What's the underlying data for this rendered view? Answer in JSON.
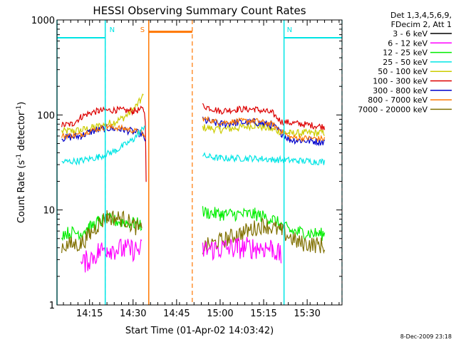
{
  "chart_data": {
    "type": "line",
    "title": "HESSI Observing Summary Count Rates",
    "xlabel": "Start Time (01-Apr-02 14:03:42)",
    "ylabel": "Count Rate (s",
    "ylabel_sup1": "-1",
    "ylabel_mid": " detector",
    "ylabel_sup2": "-1",
    "ylabel_end": ")",
    "yscale": "log",
    "ylim": [
      1,
      1000
    ],
    "xlim": [
      14.063,
      15.7
    ],
    "x_unit": "decimal hours UT",
    "x_ticks": [
      {
        "value": 14.25,
        "label": "14:15"
      },
      {
        "value": 14.5,
        "label": "14:30"
      },
      {
        "value": 14.75,
        "label": "14:45"
      },
      {
        "value": 15.0,
        "label": "15:00"
      },
      {
        "value": 15.25,
        "label": "15:15"
      },
      {
        "value": 15.5,
        "label": "15:30"
      }
    ],
    "y_ticks": [
      {
        "value": 1,
        "label": "1"
      },
      {
        "value": 10,
        "label": "10"
      },
      {
        "value": 100,
        "label": "100"
      },
      {
        "value": 1000,
        "label": "1000"
      }
    ],
    "header": {
      "line1": "Det 1,3,4,5,6,9,",
      "line2": "FDecim 2, Att 1"
    },
    "legend": [
      {
        "label": "3 - 6 keV",
        "color": "#000000"
      },
      {
        "label": "6 - 12 keV",
        "color": "#ff00ff"
      },
      {
        "label": "12 - 25 keV",
        "color": "#00ee00"
      },
      {
        "label": "25 - 50 keV",
        "color": "#00e5e5"
      },
      {
        "label": "50 - 100 keV",
        "color": "#cccc00"
      },
      {
        "label": "100 - 300 keV",
        "color": "#dd0000"
      },
      {
        "label": "300 - 800 keV",
        "color": "#0000cc"
      },
      {
        "label": "800 - 7000 keV",
        "color": "#ff7700"
      },
      {
        "label": "7000 - 20000 keV",
        "color": "#807000"
      }
    ],
    "series": [
      {
        "color": "#cccc00",
        "values": [
          [
            14.09,
            67
          ],
          [
            14.2,
            69
          ],
          [
            14.3,
            76
          ],
          [
            14.4,
            85
          ],
          [
            14.45,
            95
          ],
          [
            14.5,
            113
          ],
          [
            14.54,
            140
          ],
          [
            14.56,
            160
          ],
          [
            14.9,
            74
          ],
          [
            15.0,
            70
          ],
          [
            15.1,
            73
          ],
          [
            15.2,
            78
          ],
          [
            15.3,
            70
          ],
          [
            15.4,
            64
          ],
          [
            15.6,
            65
          ]
        ],
        "noise": 0.04
      },
      {
        "color": "#dd0000",
        "values": [
          [
            14.09,
            78
          ],
          [
            14.15,
            80
          ],
          [
            14.2,
            95
          ],
          [
            14.25,
            105
          ],
          [
            14.3,
            110
          ],
          [
            14.4,
            113
          ],
          [
            14.5,
            110
          ],
          [
            14.56,
            115
          ],
          [
            14.57,
            90
          ],
          [
            14.575,
            20
          ],
          [
            14.9,
            125
          ],
          [
            15.0,
            110
          ],
          [
            15.1,
            115
          ],
          [
            15.2,
            115
          ],
          [
            15.3,
            105
          ],
          [
            15.35,
            85
          ],
          [
            15.6,
            75
          ]
        ],
        "noise": 0.035
      },
      {
        "color": "#0000cc",
        "values": [
          [
            14.09,
            57
          ],
          [
            14.2,
            60
          ],
          [
            14.25,
            66
          ],
          [
            14.35,
            73
          ],
          [
            14.45,
            70
          ],
          [
            14.55,
            63
          ],
          [
            14.57,
            55
          ],
          [
            14.9,
            88
          ],
          [
            15.0,
            80
          ],
          [
            15.1,
            83
          ],
          [
            15.2,
            84
          ],
          [
            15.3,
            78
          ],
          [
            15.35,
            65
          ],
          [
            15.4,
            55
          ],
          [
            15.6,
            52
          ]
        ],
        "noise": 0.04
      },
      {
        "color": "#ff7700",
        "values": [
          [
            14.09,
            60
          ],
          [
            14.2,
            62
          ],
          [
            14.25,
            68
          ],
          [
            14.35,
            75
          ],
          [
            14.45,
            72
          ],
          [
            14.55,
            65
          ],
          [
            14.57,
            58
          ],
          [
            14.9,
            92
          ],
          [
            15.0,
            83
          ],
          [
            15.1,
            86
          ],
          [
            15.2,
            87
          ],
          [
            15.3,
            80
          ],
          [
            15.35,
            68
          ],
          [
            15.4,
            58
          ],
          [
            15.6,
            56
          ]
        ],
        "noise": 0.03
      },
      {
        "color": "#00e5e5",
        "values": [
          [
            14.09,
            32
          ],
          [
            14.2,
            33
          ],
          [
            14.3,
            36
          ],
          [
            14.4,
            42
          ],
          [
            14.5,
            55
          ],
          [
            14.55,
            70
          ],
          [
            14.57,
            80
          ],
          [
            14.9,
            37
          ],
          [
            15.0,
            35
          ],
          [
            15.2,
            35
          ],
          [
            15.3,
            34
          ],
          [
            15.6,
            32
          ]
        ],
        "noise": 0.035
      },
      {
        "color": "#00ee00",
        "values": [
          [
            14.09,
            5.7
          ],
          [
            14.2,
            5.8
          ],
          [
            14.25,
            6.5
          ],
          [
            14.3,
            7.5
          ],
          [
            14.35,
            7.8
          ],
          [
            14.45,
            7.5
          ],
          [
            14.55,
            7.0
          ],
          [
            14.9,
            9.5
          ],
          [
            15.0,
            9.0
          ],
          [
            15.2,
            9.0
          ],
          [
            15.3,
            8.0
          ],
          [
            15.4,
            6.0
          ],
          [
            15.6,
            5.5
          ]
        ],
        "noise": 0.07
      },
      {
        "color": "#807000",
        "values": [
          [
            14.09,
            4.2
          ],
          [
            14.2,
            4.4
          ],
          [
            14.25,
            5.5
          ],
          [
            14.3,
            7
          ],
          [
            14.35,
            8.5
          ],
          [
            14.45,
            8
          ],
          [
            14.55,
            6
          ],
          [
            14.9,
            4
          ],
          [
            15.1,
            5.5
          ],
          [
            15.25,
            7
          ],
          [
            15.35,
            6
          ],
          [
            15.45,
            4.5
          ],
          [
            15.6,
            4.2
          ]
        ],
        "noise": 0.09
      },
      {
        "color": "#ff00ff",
        "values": [
          [
            14.2,
            2.6
          ],
          [
            14.3,
            3.6
          ],
          [
            14.35,
            4
          ],
          [
            14.45,
            3.8
          ],
          [
            14.55,
            3.8
          ],
          [
            14.9,
            3.8
          ],
          [
            15.1,
            4
          ],
          [
            15.3,
            4
          ],
          [
            15.35,
            3.2
          ]
        ],
        "noise": 0.12
      }
    ],
    "markers": [
      {
        "label": "N",
        "color": "#00e5e5",
        "x_start": 14.063,
        "x_end": 14.34,
        "level": 650,
        "line_x": [
          14.063,
          14.34
        ],
        "dashed_x": [
          14.34
        ]
      },
      {
        "label": "N",
        "color": "#00e5e5",
        "x_start": 15.367,
        "x_end": 15.7,
        "level": 650,
        "line_x": [
          15.367
        ],
        "dashed_x": [
          15.7
        ]
      },
      {
        "label": "S",
        "color": "#ff7700",
        "x_start": 14.59,
        "x_end": 14.84,
        "level": 750,
        "line_x": [
          14.59
        ],
        "dashed_x": [
          14.84
        ]
      }
    ],
    "grid": false
  },
  "footer": {
    "timestamp": "8-Dec-2009 23:18"
  }
}
